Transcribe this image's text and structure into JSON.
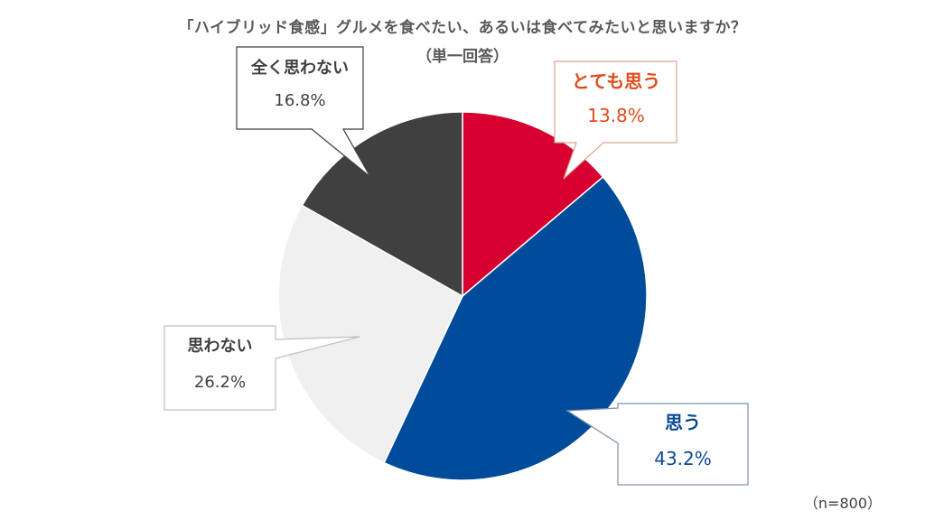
{
  "header": {
    "title": "「ハイブリッド食感」グルメを食べたい、あるいは食べてみたいと思いますか？",
    "subtitle": "（単一回答）"
  },
  "footnote": "（n=800）",
  "colors": {
    "strongly_agree": "#D7002E",
    "agree": "#004C9A",
    "disagree": "#F0F0F0",
    "strongly_disagree": "#404040",
    "strongly_agree_text": "#E04C1C",
    "agree_text": "#0B4A92",
    "gray_text": "#595959"
  },
  "labels": [
    {
      "category": "とても思う",
      "value": "13.8%"
    },
    {
      "category": "思う",
      "value": "43.2%"
    },
    {
      "category": "思わない",
      "value": "26.2%"
    },
    {
      "category": "全く思わない",
      "value": "16.8%"
    }
  ],
  "chart_data": {
    "type": "pie",
    "title": "「ハイブリッド食感」グルメを食べたい、あるいは食べてみたいと思いますか？",
    "subtitle": "（単一回答）",
    "categories": [
      "とても思う",
      "思う",
      "思わない",
      "全く思わない"
    ],
    "values": [
      13.8,
      43.2,
      26.2,
      16.8
    ],
    "unit": "%",
    "colors": [
      "#D7002E",
      "#004C9A",
      "#F0F0F0",
      "#404040"
    ],
    "start_angle": "12 o'clock, clockwise",
    "annotation": "（n=800）",
    "legend": "callout labels"
  }
}
